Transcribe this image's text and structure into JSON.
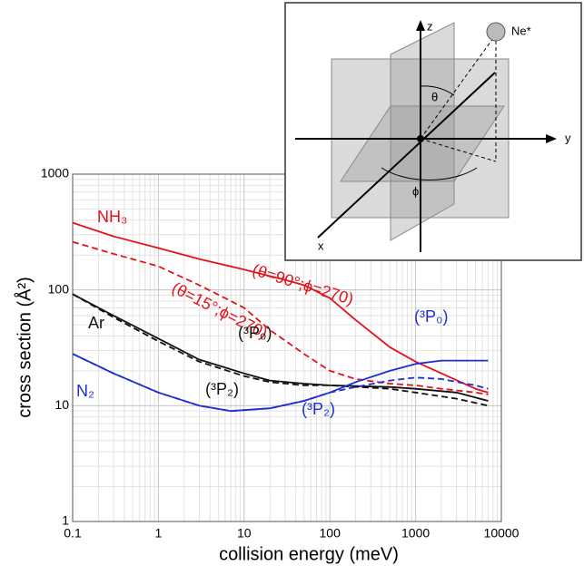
{
  "chart_data": {
    "type": "line",
    "xlabel": "collision energy (meV)",
    "ylabel": "cross section (Å²)",
    "xscale": "log",
    "yscale": "log",
    "grid": true,
    "xlim": [
      0.1,
      10000
    ],
    "ylim": [
      1,
      1000
    ],
    "xticks": [
      0.1,
      1,
      10,
      100,
      1000,
      10000
    ],
    "yticks": [
      1,
      10,
      100,
      1000
    ],
    "series": [
      {
        "color": "#e3121b",
        "dash": false,
        "x": [
          0.1,
          0.3,
          1,
          3,
          10,
          30,
          50,
          100,
          200,
          500,
          1000,
          2000,
          5000,
          7000
        ],
        "values": [
          380,
          290,
          230,
          185,
          150,
          122,
          110,
          85,
          55,
          32,
          24,
          19,
          14,
          13
        ]
      },
      {
        "color": "#e3121b",
        "dash": true,
        "x": [
          0.1,
          0.3,
          1,
          3,
          10,
          20,
          50,
          100,
          200,
          500,
          1000,
          2000,
          5000,
          7000
        ],
        "values": [
          260,
          205,
          160,
          110,
          70,
          45,
          28,
          20,
          17,
          15.5,
          15,
          14,
          13,
          12.5
        ]
      },
      {
        "color": "#111111",
        "dash": false,
        "x": [
          0.1,
          0.3,
          1,
          3,
          10,
          20,
          50,
          100,
          500,
          1000,
          3000,
          7000
        ],
        "values": [
          92,
          60,
          38,
          25,
          19,
          16.5,
          15.5,
          15,
          14.5,
          14,
          13,
          11
        ]
      },
      {
        "color": "#111111",
        "dash": true,
        "x": [
          0.1,
          0.3,
          1,
          3,
          10,
          20,
          50,
          100,
          500,
          1000,
          3000,
          7000
        ],
        "values": [
          92,
          58,
          36,
          24,
          18,
          16,
          15,
          15,
          14,
          13,
          11.5,
          10
        ]
      },
      {
        "color": "#1c2fd1",
        "dash": false,
        "x": [
          0.1,
          0.3,
          1,
          3,
          7,
          20,
          50,
          100,
          200,
          500,
          1000,
          2000,
          7000
        ],
        "values": [
          28,
          19,
          13,
          10,
          9,
          9.5,
          11,
          13,
          16,
          20,
          23,
          24.5,
          24.5
        ]
      },
      {
        "color": "#1c2fd1",
        "dash": true,
        "x": [
          0.1,
          0.3,
          1,
          3,
          7,
          20,
          50,
          100,
          200,
          500,
          1000,
          2000,
          5000,
          7000
        ],
        "values": [
          28,
          19,
          13,
          10,
          9,
          9.5,
          11,
          13,
          14.5,
          16.5,
          17.5,
          17,
          15,
          14
        ]
      }
    ],
    "annotations": [
      {
        "text": "NH₃",
        "color": "#e3121b"
      },
      {
        "text": "(θ=90°;ϕ=270)",
        "color": "#e3121b"
      },
      {
        "text": "(θ=15°;ϕ=270)",
        "color": "#e3121b"
      },
      {
        "text": "Ar",
        "color": "#111111"
      },
      {
        "text": "N₂",
        "color": "#1c2fd1"
      },
      {
        "text": "(³P₀)",
        "color": "#111111"
      },
      {
        "text": "(³P₂)",
        "color": "#111111"
      },
      {
        "text": "(³P₀)",
        "color": "#1c2fd1"
      },
      {
        "text": "(³P₂)",
        "color": "#1c2fd1"
      }
    ]
  },
  "diagram": {
    "z": "z",
    "y": "y",
    "x": "x",
    "atom": "Ne*",
    "theta": "θ",
    "phi": "ϕ"
  }
}
